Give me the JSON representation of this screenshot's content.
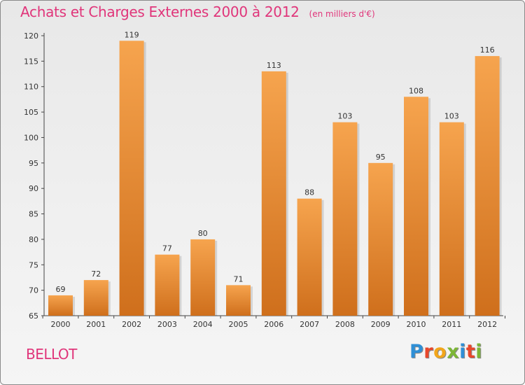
{
  "chart_data": {
    "type": "bar",
    "title": "Achats et Charges Externes 2000 à 2012",
    "unit": "(en milliers d'€)",
    "categories": [
      "2000",
      "2001",
      "2002",
      "2003",
      "2004",
      "2005",
      "2006",
      "2007",
      "2008",
      "2009",
      "2010",
      "2011",
      "2012"
    ],
    "values": [
      69,
      72,
      119,
      77,
      80,
      71,
      113,
      88,
      103,
      95,
      108,
      103,
      116
    ],
    "ylim": [
      65,
      120
    ],
    "yticks": [
      65,
      70,
      75,
      80,
      85,
      90,
      95,
      100,
      105,
      110,
      115,
      120
    ],
    "grid": false,
    "colors": {
      "bar_light": "#f6a44e",
      "bar_dark": "#cf6f1c",
      "title": "#e0357a"
    }
  },
  "commune": "BELLOT",
  "logo": {
    "text": "Proxiti",
    "letters": [
      {
        "ch": "P",
        "color": "#2f8fd6"
      },
      {
        "ch": "r",
        "color": "#e8472b"
      },
      {
        "ch": "o",
        "color": "#f2a61b"
      },
      {
        "ch": "x",
        "color": "#7cb636"
      },
      {
        "ch": "i",
        "color": "#2f8fd6"
      },
      {
        "ch": "t",
        "color": "#e8472b"
      },
      {
        "ch": "i",
        "color": "#7cb636"
      }
    ]
  }
}
